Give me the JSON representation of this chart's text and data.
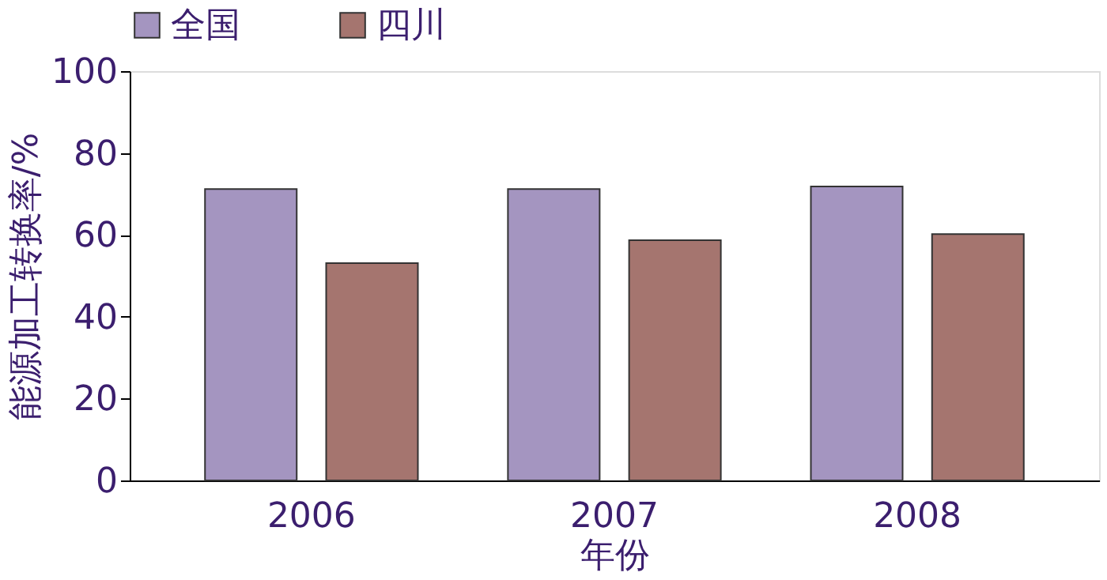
{
  "chart_data": {
    "type": "bar",
    "xlabel": "年份",
    "ylabel": "能源加工转换率/%",
    "categories": [
      "2006",
      "2007",
      "2008"
    ],
    "series": [
      {
        "name": "全国",
        "color": "#a495c0",
        "values": [
          71.2,
          71.2,
          71.8
        ]
      },
      {
        "name": "四川",
        "color": "#a5756f",
        "values": [
          53.1,
          58.7,
          60.2
        ]
      }
    ],
    "ylim": [
      0,
      100
    ],
    "yticks": [
      0,
      20,
      40,
      60,
      80,
      100
    ],
    "grid": false,
    "legend": "top"
  }
}
